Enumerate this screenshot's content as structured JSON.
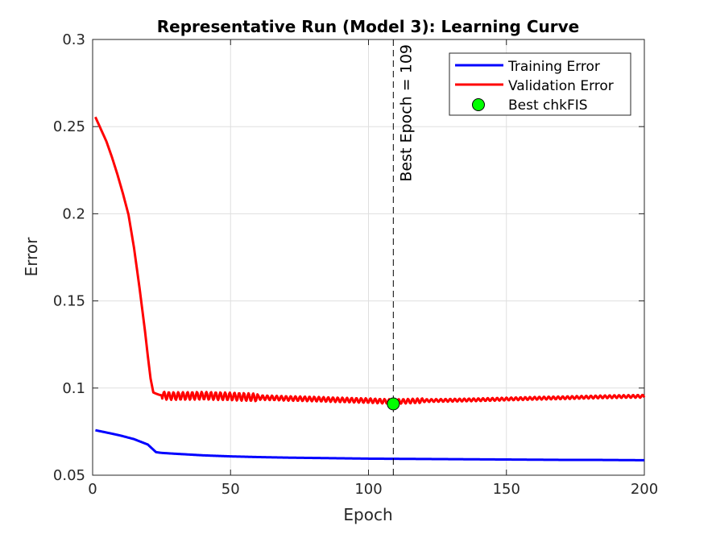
{
  "chart_data": {
    "type": "line",
    "title": "Representative Run (Model 3): Learning Curve",
    "xlabel": "Epoch",
    "ylabel": "Error",
    "xlim": [
      0,
      200
    ],
    "ylim": [
      0.05,
      0.3
    ],
    "xticks": [
      "0",
      "50",
      "100",
      "150",
      "200"
    ],
    "xtick_values": [
      0,
      50,
      100,
      150,
      200
    ],
    "yticks": [
      "0.05",
      "0.1",
      "0.15",
      "0.2",
      "0.25",
      "0.3"
    ],
    "ytick_values": [
      0.05,
      0.1,
      0.15,
      0.2,
      0.25,
      0.3
    ],
    "grid": true,
    "legend_position": "top-right",
    "series": [
      {
        "name": "Training Error",
        "color": "#0000ff",
        "style": "solid",
        "x": [
          1,
          5,
          10,
          15,
          20,
          23,
          25,
          30,
          40,
          50,
          60,
          70,
          80,
          90,
          100,
          110,
          120,
          130,
          140,
          150,
          160,
          170,
          180,
          190,
          200
        ],
        "y": [
          0.0758,
          0.0745,
          0.0728,
          0.0707,
          0.0676,
          0.0632,
          0.0628,
          0.0623,
          0.0614,
          0.0608,
          0.0604,
          0.0601,
          0.0599,
          0.0597,
          0.0595,
          0.0594,
          0.0593,
          0.0592,
          0.0591,
          0.059,
          0.0589,
          0.0588,
          0.0588,
          0.0587,
          0.0586
        ]
      },
      {
        "name": "Validation Error",
        "color": "#ff0000",
        "style": "solid",
        "x": [
          1,
          3,
          5,
          7,
          9,
          11,
          13,
          15,
          17,
          19,
          20,
          21,
          22,
          23,
          24,
          25,
          27,
          30,
          35,
          40,
          50,
          60,
          70,
          80,
          90,
          100,
          109,
          120,
          130,
          140,
          150,
          160,
          170,
          180,
          190,
          200
        ],
        "y": [
          0.2555,
          0.2485,
          0.2415,
          0.2325,
          0.2225,
          0.2115,
          0.1995,
          0.1805,
          0.1575,
          0.1325,
          0.1185,
          0.1055,
          0.0975,
          0.0968,
          0.0962,
          0.0958,
          0.0955,
          0.0954,
          0.0955,
          0.0956,
          0.0952,
          0.0946,
          0.0941,
          0.0937,
          0.0932,
          0.0928,
          0.0922,
          0.0928,
          0.093,
          0.0933,
          0.0937,
          0.0941,
          0.0944,
          0.0948,
          0.0951,
          0.0953
        ],
        "note_oscillation": "small periodic ripple about the curve after epoch 25"
      }
    ],
    "markers": [
      {
        "name": "Best chkFIS",
        "x": 109,
        "y": 0.0909,
        "color": "#00ff00",
        "edge": "#000000"
      }
    ],
    "vlines": [
      {
        "x": 109,
        "style": "dashed",
        "color": "#000000"
      }
    ],
    "annotations": [
      {
        "text": "Best Epoch = 109",
        "x": 109,
        "y": 0.3,
        "rotation": -90
      }
    ],
    "colors": {
      "axes": "#262626",
      "grid": "#dfdfdf",
      "background": "#ffffff"
    }
  }
}
